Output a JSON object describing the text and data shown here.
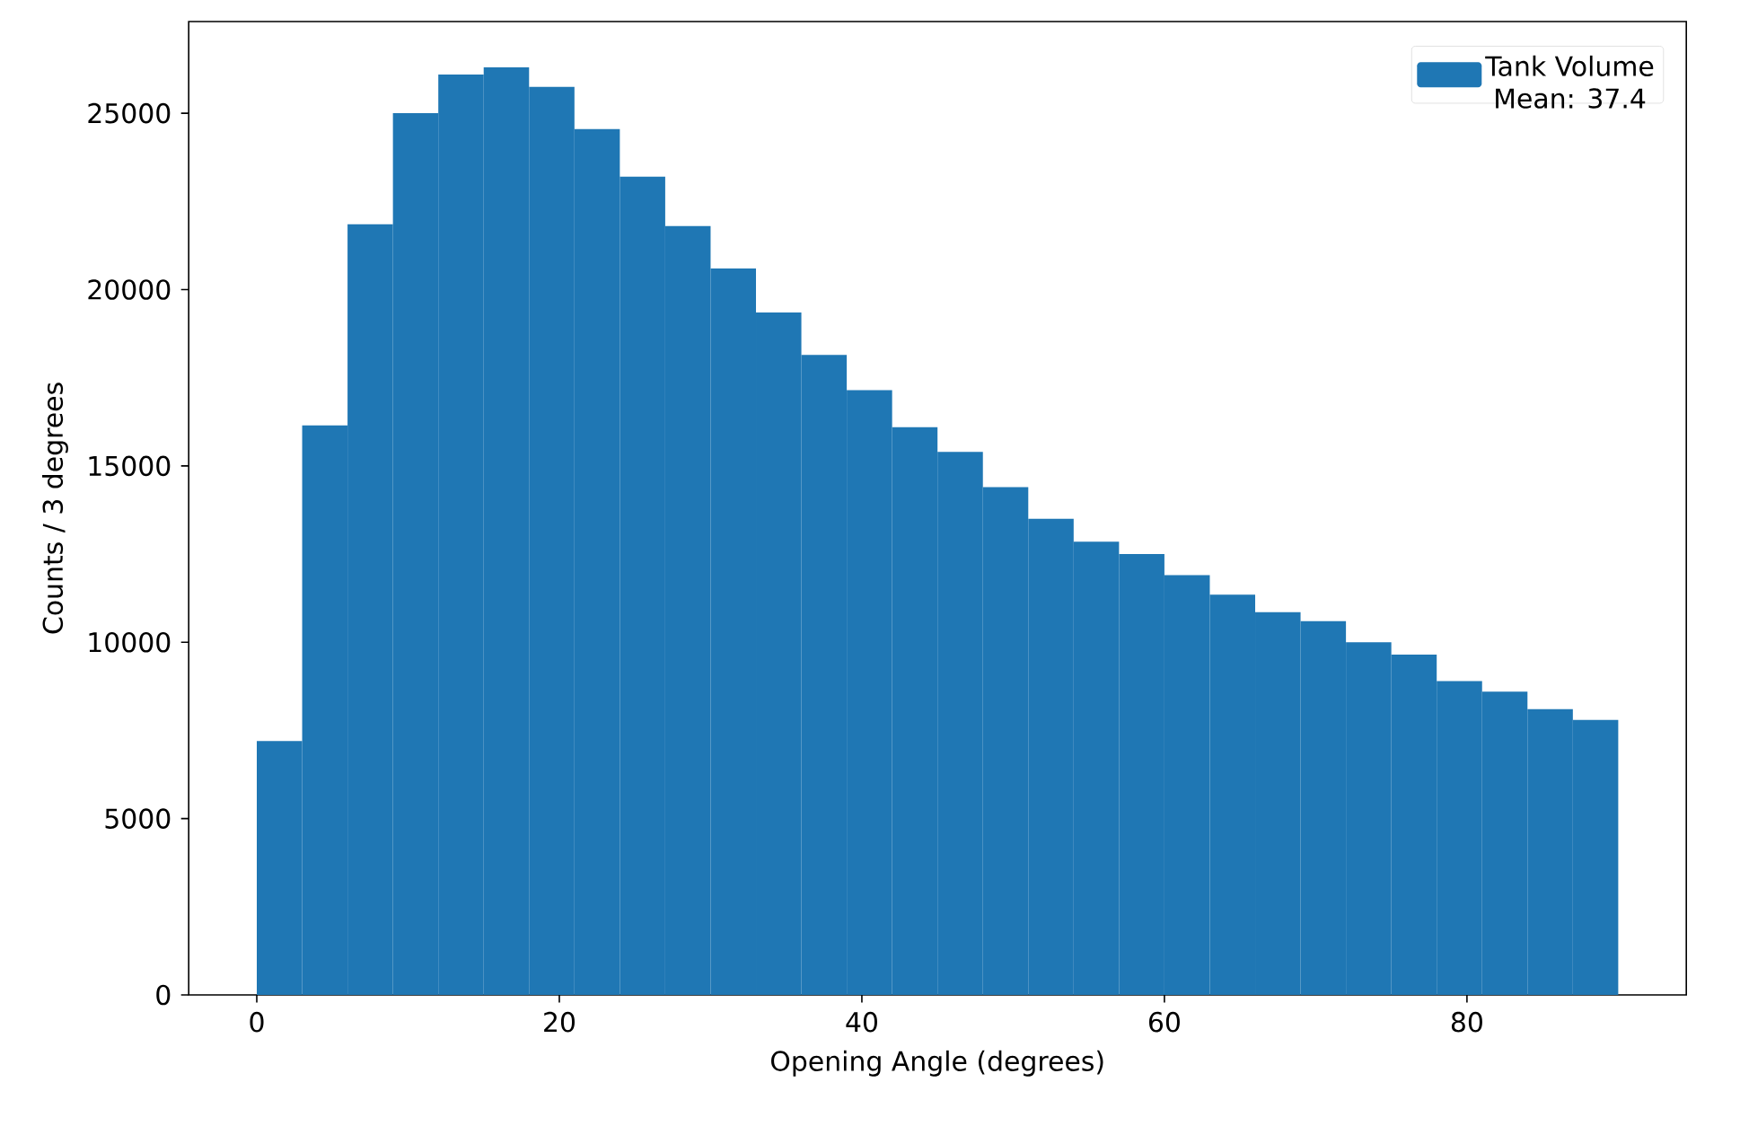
{
  "chart_data": {
    "type": "histogram",
    "xlabel": "Opening Angle (degrees)",
    "ylabel": "Counts / 3 degrees",
    "bins": [
      0,
      3,
      6,
      9,
      12,
      15,
      18,
      21,
      24,
      27,
      30,
      33,
      36,
      39,
      42,
      45,
      48,
      51,
      54,
      57,
      60,
      63,
      66,
      69,
      72,
      75,
      78,
      81,
      84,
      87,
      90
    ],
    "series": [
      {
        "name": "Tank Volume",
        "color": "#1f77b4",
        "values": [
          7200,
          16150,
          21850,
          25000,
          26100,
          26300,
          25750,
          24550,
          23200,
          21800,
          20600,
          19350,
          18150,
          17150,
          16100,
          15400,
          14400,
          13500,
          12850,
          12500,
          11900,
          11350,
          10850,
          10600,
          10000,
          9650,
          8900,
          8600,
          8100,
          7800
        ]
      }
    ],
    "annotations": [
      "Mean: 37.4"
    ],
    "xlim": [
      -4.5,
      94.5
    ],
    "ylim": [
      0,
      27600
    ],
    "xticks": [
      0,
      20,
      40,
      60,
      80
    ],
    "yticks": [
      0,
      5000,
      10000,
      15000,
      20000,
      25000
    ],
    "legend": "top right",
    "grid": false
  }
}
